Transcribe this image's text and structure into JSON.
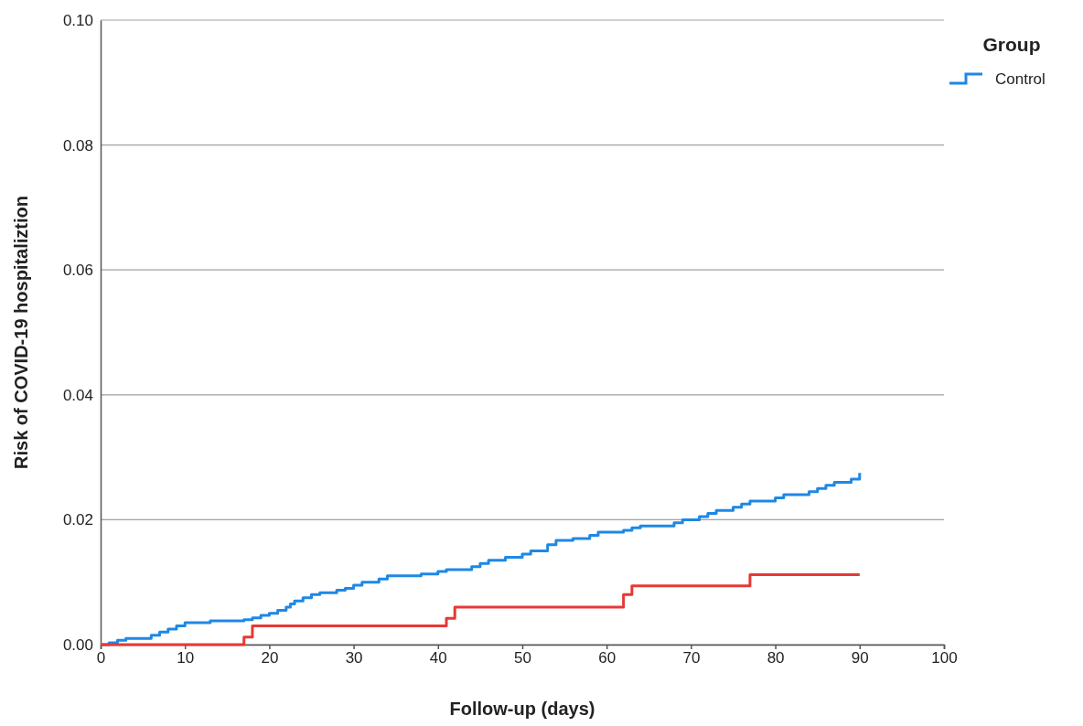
{
  "chart_data": {
    "type": "step",
    "xlabel": "Follow-up (days)",
    "ylabel": "Risk of COVID-19 hospitaliztion",
    "legend_title": "Group",
    "legend": "top right",
    "grid": "y",
    "xlim": [
      0,
      100
    ],
    "xticks": [
      0,
      10,
      20,
      30,
      40,
      50,
      60,
      70,
      80,
      90,
      100
    ],
    "ylim": [
      0,
      0.1
    ],
    "yticks": [
      {
        "value": 0,
        "label": "0.00"
      },
      {
        "value": 0.02,
        "label": "0.02"
      },
      {
        "value": 0.04,
        "label": "0.04"
      },
      {
        "value": 0.06,
        "label": "0.06"
      },
      {
        "value": 0.08,
        "label": "0.08"
      },
      {
        "value": 0.1,
        "label": "0.10"
      }
    ],
    "series": [
      {
        "name": "Control",
        "color": "#1e88e5",
        "x": [
          0,
          1,
          2,
          3,
          6,
          7,
          8,
          9,
          10,
          13,
          17,
          18,
          19,
          20,
          21,
          22,
          22.5,
          23,
          24,
          25,
          26,
          28,
          29,
          30,
          31,
          33,
          34,
          38,
          40,
          41,
          44,
          45,
          46,
          48,
          50,
          51,
          53,
          54,
          56,
          58,
          59,
          62,
          63,
          64,
          68,
          69,
          71,
          72,
          73,
          75,
          76,
          77,
          80,
          81,
          84,
          85,
          86,
          87,
          89,
          90
        ],
        "values": [
          0,
          0.0003,
          0.0007,
          0.001,
          0.0015,
          0.002,
          0.0025,
          0.003,
          0.0035,
          0.0038,
          0.004,
          0.0043,
          0.0047,
          0.005,
          0.0055,
          0.006,
          0.0065,
          0.007,
          0.0075,
          0.008,
          0.0083,
          0.0087,
          0.009,
          0.0095,
          0.01,
          0.0105,
          0.011,
          0.0113,
          0.0117,
          0.012,
          0.0125,
          0.013,
          0.0135,
          0.014,
          0.0145,
          0.015,
          0.016,
          0.0167,
          0.017,
          0.0175,
          0.018,
          0.0183,
          0.0187,
          0.019,
          0.0195,
          0.02,
          0.0205,
          0.021,
          0.0215,
          0.022,
          0.0225,
          0.023,
          0.0235,
          0.024,
          0.0245,
          0.025,
          0.0255,
          0.026,
          0.0265,
          0.0275
        ]
      },
      {
        "color": "#e53935",
        "x": [
          0,
          17,
          18,
          41,
          42,
          62,
          63,
          77,
          90
        ],
        "values": [
          0,
          0.0012,
          0.003,
          0.0042,
          0.006,
          0.008,
          0.0094,
          0.0112,
          0.0112
        ]
      }
    ]
  }
}
